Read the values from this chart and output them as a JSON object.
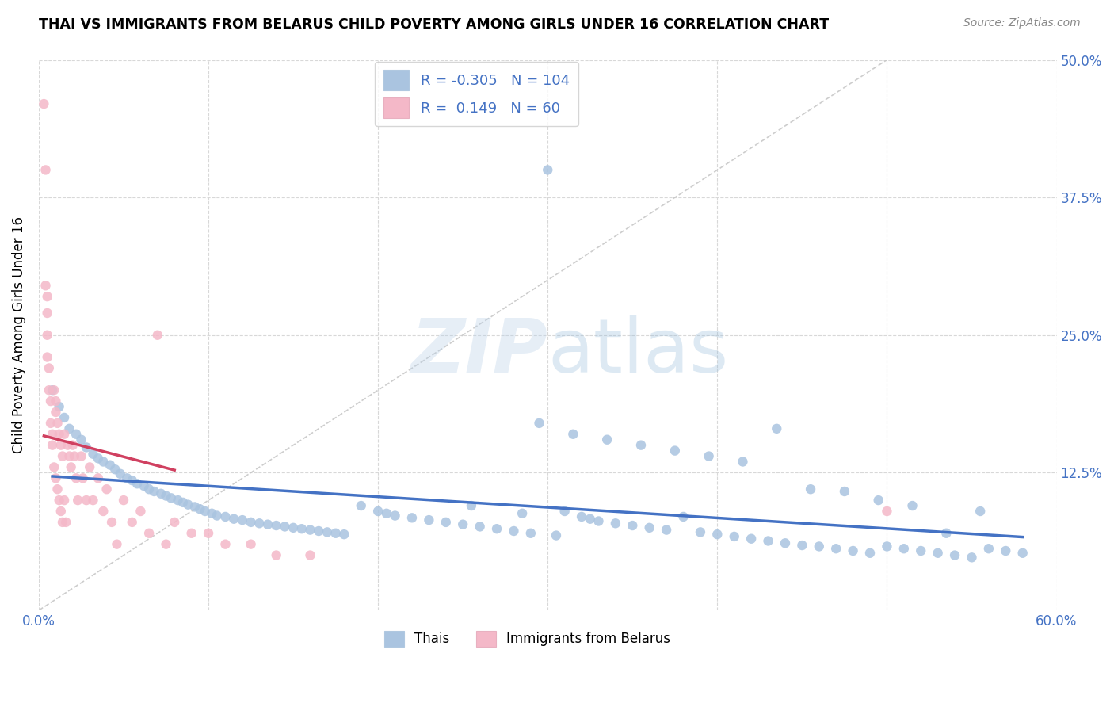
{
  "title": "THAI VS IMMIGRANTS FROM BELARUS CHILD POVERTY AMONG GIRLS UNDER 16 CORRELATION CHART",
  "source": "Source: ZipAtlas.com",
  "ylabel": "Child Poverty Among Girls Under 16",
  "xlim": [
    0.0,
    0.6
  ],
  "ylim": [
    0.0,
    0.5
  ],
  "thai_R": -0.305,
  "thai_N": 104,
  "belarus_R": 0.149,
  "belarus_N": 60,
  "thai_color": "#aac4e0",
  "belarus_color": "#f4b8c8",
  "thai_line_color": "#4472c4",
  "belarus_line_color": "#d04060",
  "diagonal_color": "#c8c8c8",
  "background": "#ffffff",
  "grid_color": "#d8d8d8",
  "tick_color": "#4472c4",
  "title_color": "#000000",
  "source_color": "#888888",
  "ylabel_color": "#000000",
  "legend_text_color": "#4472c4",
  "thai_scatter_x": [
    0.008,
    0.012,
    0.015,
    0.018,
    0.022,
    0.025,
    0.028,
    0.032,
    0.035,
    0.038,
    0.042,
    0.045,
    0.048,
    0.052,
    0.055,
    0.058,
    0.062,
    0.065,
    0.068,
    0.072,
    0.075,
    0.078,
    0.082,
    0.085,
    0.088,
    0.092,
    0.095,
    0.098,
    0.102,
    0.105,
    0.11,
    0.115,
    0.12,
    0.125,
    0.13,
    0.135,
    0.14,
    0.145,
    0.15,
    0.155,
    0.16,
    0.165,
    0.17,
    0.175,
    0.18,
    0.19,
    0.2,
    0.205,
    0.21,
    0.22,
    0.23,
    0.24,
    0.25,
    0.255,
    0.26,
    0.27,
    0.28,
    0.285,
    0.29,
    0.3,
    0.305,
    0.31,
    0.32,
    0.325,
    0.33,
    0.34,
    0.35,
    0.36,
    0.37,
    0.38,
    0.39,
    0.4,
    0.41,
    0.42,
    0.43,
    0.44,
    0.45,
    0.46,
    0.47,
    0.48,
    0.49,
    0.5,
    0.51,
    0.52,
    0.53,
    0.54,
    0.55,
    0.56,
    0.57,
    0.58,
    0.295,
    0.315,
    0.335,
    0.355,
    0.375,
    0.395,
    0.415,
    0.435,
    0.455,
    0.475,
    0.495,
    0.515,
    0.535,
    0.555
  ],
  "thai_scatter_y": [
    0.2,
    0.185,
    0.175,
    0.165,
    0.16,
    0.155,
    0.148,
    0.142,
    0.138,
    0.135,
    0.132,
    0.128,
    0.124,
    0.12,
    0.118,
    0.115,
    0.113,
    0.11,
    0.108,
    0.106,
    0.104,
    0.102,
    0.1,
    0.098,
    0.096,
    0.094,
    0.092,
    0.09,
    0.088,
    0.086,
    0.085,
    0.083,
    0.082,
    0.08,
    0.079,
    0.078,
    0.077,
    0.076,
    0.075,
    0.074,
    0.073,
    0.072,
    0.071,
    0.07,
    0.069,
    0.095,
    0.09,
    0.088,
    0.086,
    0.084,
    0.082,
    0.08,
    0.078,
    0.095,
    0.076,
    0.074,
    0.072,
    0.088,
    0.07,
    0.4,
    0.068,
    0.09,
    0.085,
    0.083,
    0.081,
    0.079,
    0.077,
    0.075,
    0.073,
    0.085,
    0.071,
    0.069,
    0.067,
    0.065,
    0.063,
    0.061,
    0.059,
    0.058,
    0.056,
    0.054,
    0.052,
    0.058,
    0.056,
    0.054,
    0.052,
    0.05,
    0.048,
    0.056,
    0.054,
    0.052,
    0.17,
    0.16,
    0.155,
    0.15,
    0.145,
    0.14,
    0.135,
    0.165,
    0.11,
    0.108,
    0.1,
    0.095,
    0.07,
    0.09
  ],
  "belarus_scatter_x": [
    0.003,
    0.004,
    0.004,
    0.005,
    0.005,
    0.005,
    0.005,
    0.006,
    0.006,
    0.007,
    0.007,
    0.008,
    0.008,
    0.009,
    0.009,
    0.01,
    0.01,
    0.01,
    0.011,
    0.011,
    0.012,
    0.012,
    0.013,
    0.013,
    0.014,
    0.014,
    0.015,
    0.015,
    0.016,
    0.017,
    0.018,
    0.019,
    0.02,
    0.021,
    0.022,
    0.023,
    0.025,
    0.026,
    0.028,
    0.03,
    0.032,
    0.035,
    0.038,
    0.04,
    0.043,
    0.046,
    0.05,
    0.055,
    0.06,
    0.065,
    0.07,
    0.075,
    0.08,
    0.09,
    0.1,
    0.11,
    0.125,
    0.14,
    0.16,
    0.5
  ],
  "belarus_scatter_y": [
    0.46,
    0.4,
    0.295,
    0.285,
    0.27,
    0.25,
    0.23,
    0.22,
    0.2,
    0.19,
    0.17,
    0.16,
    0.15,
    0.2,
    0.13,
    0.19,
    0.18,
    0.12,
    0.17,
    0.11,
    0.16,
    0.1,
    0.15,
    0.09,
    0.14,
    0.08,
    0.16,
    0.1,
    0.08,
    0.15,
    0.14,
    0.13,
    0.15,
    0.14,
    0.12,
    0.1,
    0.14,
    0.12,
    0.1,
    0.13,
    0.1,
    0.12,
    0.09,
    0.11,
    0.08,
    0.06,
    0.1,
    0.08,
    0.09,
    0.07,
    0.25,
    0.06,
    0.08,
    0.07,
    0.07,
    0.06,
    0.06,
    0.05,
    0.05,
    0.09
  ]
}
